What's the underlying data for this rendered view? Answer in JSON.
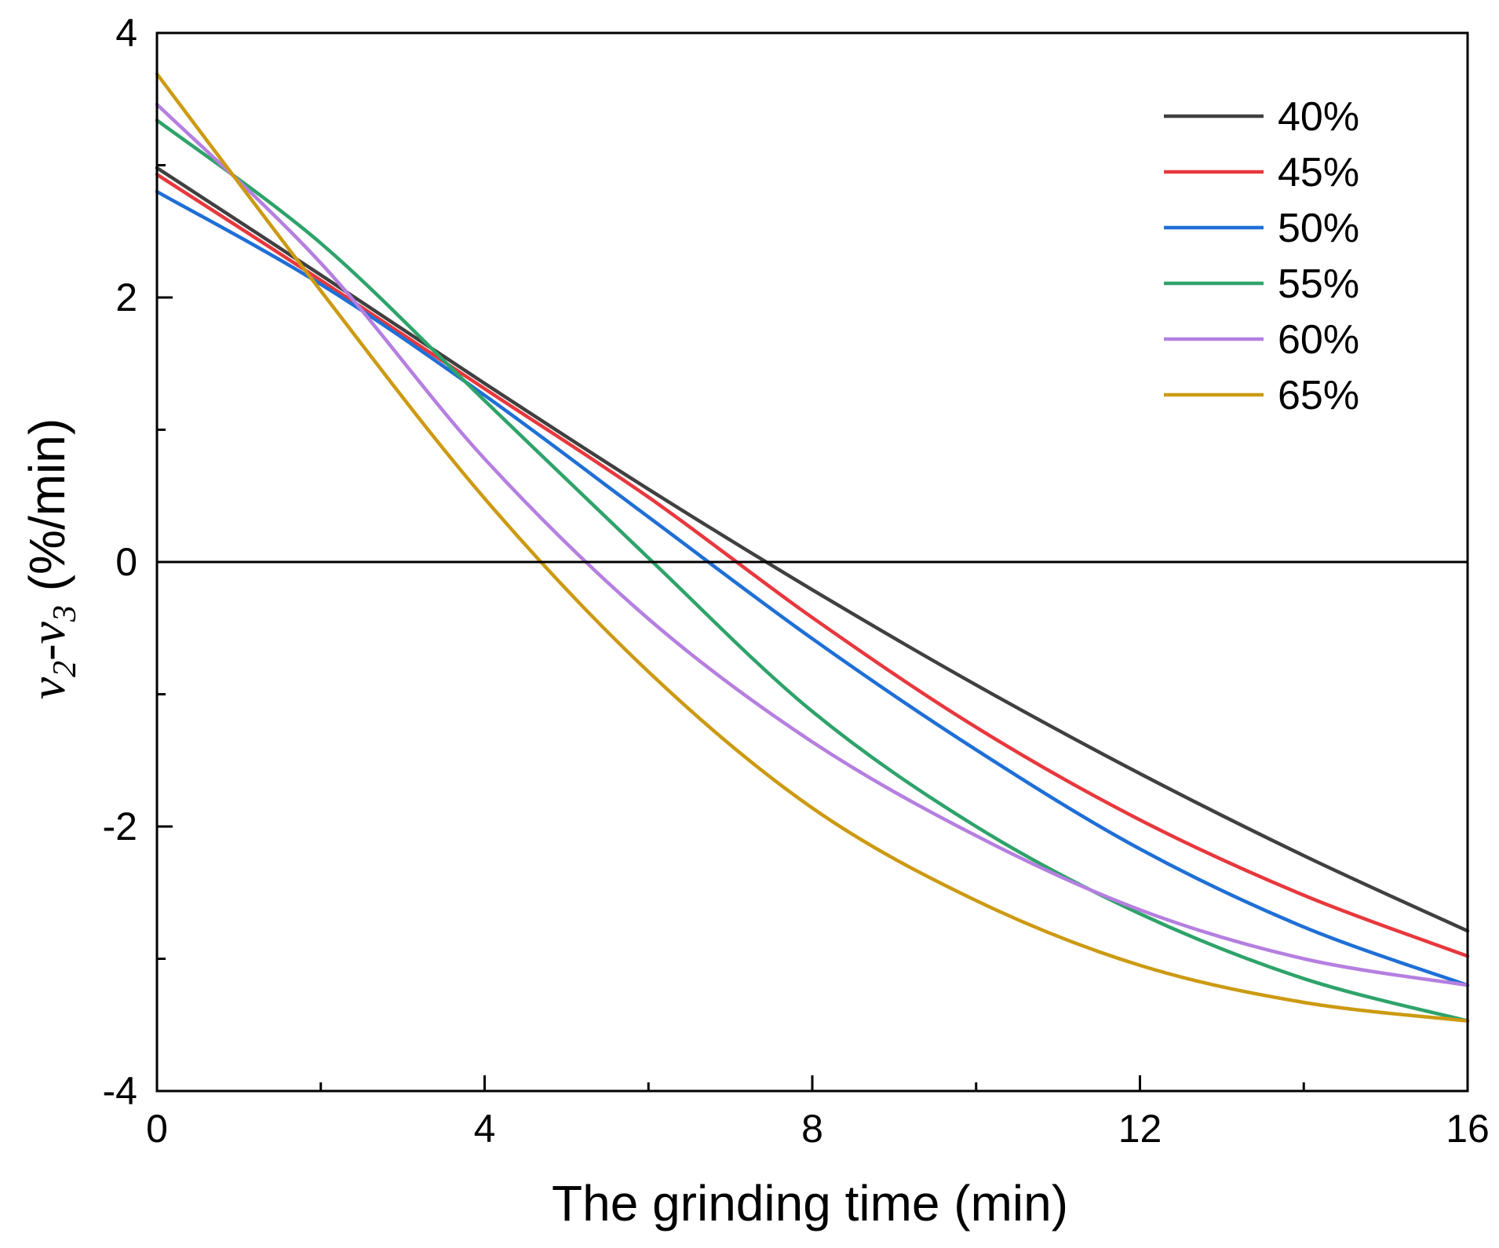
{
  "chart_data": {
    "type": "line",
    "title": "",
    "xlabel": "The grinding time (min)",
    "ylabel": {
      "var1": "v",
      "sub1": "2",
      "dash": "-",
      "var2": "v",
      "sub2": "3",
      "unit": " (%/min)"
    },
    "xlim": [
      0,
      16
    ],
    "ylim": [
      -4,
      4
    ],
    "x_ticks": [
      "0",
      "4",
      "8",
      "12",
      "16"
    ],
    "x_tick_values": [
      0,
      4,
      8,
      12,
      16
    ],
    "x_minor_ticks": [
      2,
      6,
      10,
      14
    ],
    "y_ticks": [
      "-4",
      "-2",
      "0",
      "2",
      "4"
    ],
    "y_tick_values": [
      -4,
      -2,
      0,
      2,
      4
    ],
    "y_minor_ticks": [
      -3,
      -1,
      1,
      3
    ],
    "zero_line": 0,
    "grid": false,
    "legend_position": "top-right",
    "series": [
      {
        "name": "40%",
        "color": "#404040",
        "x": [
          0,
          2,
          4,
          6,
          8,
          10,
          12,
          14,
          16
        ],
        "y": [
          2.98,
          2.17,
          1.35,
          0.55,
          -0.21,
          -0.93,
          -1.6,
          -2.22,
          -2.79
        ]
      },
      {
        "name": "45%",
        "color": "#e8383d",
        "x": [
          0,
          2,
          4,
          6,
          8,
          10,
          12,
          14,
          16
        ],
        "y": [
          2.93,
          2.13,
          1.31,
          0.49,
          -0.42,
          -1.25,
          -1.95,
          -2.52,
          -2.98
        ]
      },
      {
        "name": "50%",
        "color": "#1f6fd6",
        "x": [
          0,
          2,
          4,
          6,
          8,
          10,
          12,
          14,
          16
        ],
        "y": [
          2.8,
          2.1,
          1.26,
          0.34,
          -0.58,
          -1.42,
          -2.17,
          -2.76,
          -3.2
        ]
      },
      {
        "name": "55%",
        "color": "#2ea36a",
        "x": [
          0,
          2,
          4,
          6,
          8,
          10,
          12,
          14,
          16
        ],
        "y": [
          3.34,
          2.41,
          1.22,
          0.03,
          -1.13,
          -2.0,
          -2.66,
          -3.15,
          -3.47
        ]
      },
      {
        "name": "60%",
        "color": "#b57fe0",
        "x": [
          0,
          2,
          4,
          6,
          8,
          10,
          12,
          14,
          16
        ],
        "y": [
          3.46,
          2.26,
          0.78,
          -0.43,
          -1.36,
          -2.07,
          -2.63,
          -3.0,
          -3.2
        ]
      },
      {
        "name": "65%",
        "color": "#cc9a12",
        "x": [
          0,
          2,
          4,
          6,
          8,
          10,
          12,
          14,
          16
        ],
        "y": [
          3.69,
          2.05,
          0.48,
          -0.83,
          -1.86,
          -2.56,
          -3.05,
          -3.33,
          -3.47
        ]
      }
    ]
  }
}
